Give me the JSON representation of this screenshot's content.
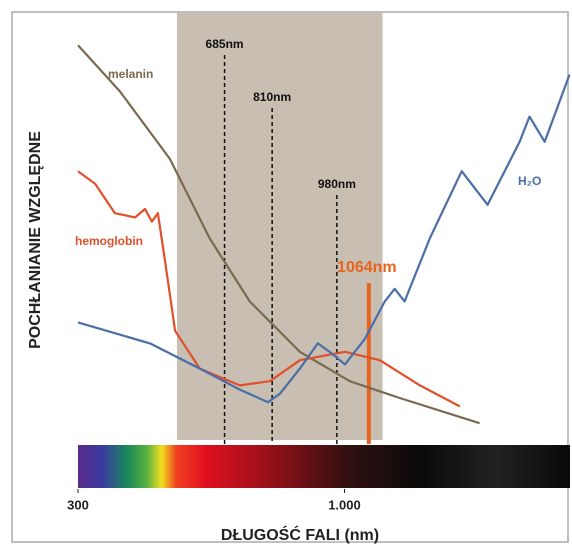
{
  "chart_data": {
    "type": "line",
    "xlabel": "DŁUGOŚĆ FALI (nm)",
    "ylabel": "POCHŁANIANIE WZGLĘDNE",
    "xlim": [
      300,
      1595
    ],
    "ylim": [
      0,
      100
    ],
    "xticks": [
      300,
      {
        "value": 1000,
        "label": "1.000"
      }
    ],
    "band": [
      560,
      1100
    ],
    "band_color": "#c8beb2",
    "markers": [
      {
        "value": 685,
        "label": "685nm",
        "color": "#111111"
      },
      {
        "value": 810,
        "label": "810nm",
        "color": "#111111"
      },
      {
        "value": 980,
        "label": "980nm",
        "color": "#111111"
      },
      {
        "value": 1064,
        "label": "1064nm",
        "color": "#e8641e"
      }
    ],
    "series": [
      {
        "name": "melanin",
        "color": "#7a6a4f",
        "x": [
          300,
          410,
          541,
          646,
          751,
          883,
          1014,
          1145,
          1355
        ],
        "values": [
          94,
          83,
          67,
          48,
          33,
          21,
          14,
          10,
          4
        ]
      },
      {
        "name": "hemoglobin",
        "color": "#e0502a",
        "x": [
          300,
          345,
          397,
          450,
          476,
          494,
          510,
          528,
          555,
          620,
          725,
          804,
          883,
          1001,
          1093,
          1198,
          1303
        ],
        "values": [
          64,
          61,
          54,
          53,
          55,
          52,
          54,
          43,
          26,
          17,
          13,
          14,
          19,
          21,
          19,
          13,
          8
        ]
      },
      {
        "name": "H₂O",
        "color": "#4a6ea8",
        "x": [
          300,
          489,
          620,
          725,
          799,
          830,
          883,
          930,
          961,
          1001,
          1053,
          1106,
          1132,
          1158,
          1224,
          1308,
          1376,
          1460,
          1486,
          1526,
          1591
        ],
        "values": [
          28,
          23,
          17,
          12,
          9,
          11,
          17,
          23,
          21,
          18,
          24,
          33,
          36,
          33,
          48,
          64,
          56,
          71,
          77,
          71,
          87
        ]
      }
    ]
  }
}
